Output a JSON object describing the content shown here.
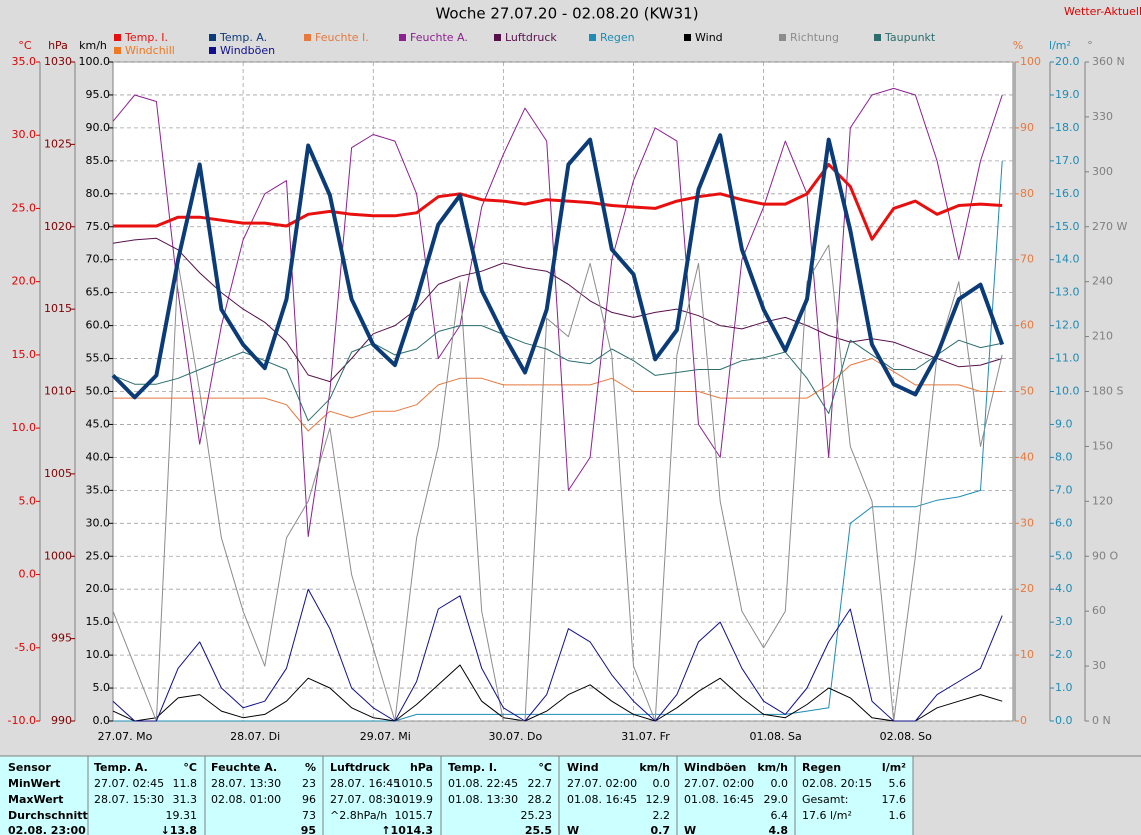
{
  "chart_data": {
    "type": "line",
    "title": "Woche 27.07.20 - 02.08.20 (KW31)",
    "brand": "Wetter-Aktuell",
    "categories": [
      "27.07. Mo",
      null,
      null,
      null,
      null,
      null,
      "28.07. Di",
      null,
      null,
      null,
      null,
      null,
      "29.07. Mi",
      null,
      null,
      null,
      null,
      null,
      "30.07. Do",
      null,
      null,
      null,
      null,
      null,
      "31.07. Fr",
      null,
      null,
      null,
      null,
      null,
      "01.08. Sa",
      null,
      null,
      null,
      null,
      null,
      "02.08. So",
      null,
      null,
      null,
      null,
      null
    ],
    "grid": true,
    "grid_axis": "kmh",
    "axes": {
      "temp": {
        "title": "°C",
        "color": "#e00000",
        "lim": [
          -10,
          35
        ],
        "ticks": [
          {
            "value": -10,
            "label": "-10.0"
          },
          {
            "value": -5,
            "label": "-5.0"
          },
          {
            "value": 0,
            "label": "0.0"
          },
          {
            "value": 5,
            "label": "5.0"
          },
          {
            "value": 10,
            "label": "10.0"
          },
          {
            "value": 15,
            "label": "15.0"
          },
          {
            "value": 20,
            "label": "20.0"
          },
          {
            "value": 25,
            "label": "25.0"
          },
          {
            "value": 30,
            "label": "30.0"
          },
          {
            "value": 35,
            "label": "35.0"
          }
        ]
      },
      "hpa": {
        "title": "hPa",
        "color": "#800000",
        "lim": [
          990,
          1030
        ],
        "ticks": [
          990,
          995,
          1000,
          1005,
          1010,
          1015,
          1020,
          1025,
          1030
        ]
      },
      "kmh": {
        "title": "km/h",
        "color": "#000000",
        "lim": [
          0,
          100
        ],
        "ticks": [
          {
            "value": 0,
            "label": "0.0"
          },
          {
            "value": 5,
            "label": "5.0"
          },
          {
            "value": 10,
            "label": "10.0"
          },
          {
            "value": 15,
            "label": "15.0"
          },
          {
            "value": 20,
            "label": "20.0"
          },
          {
            "value": 25,
            "label": "25.0"
          },
          {
            "value": 30,
            "label": "30.0"
          },
          {
            "value": 35,
            "label": "35.0"
          },
          {
            "value": 40,
            "label": "40.0"
          },
          {
            "value": 45,
            "label": "45.0"
          },
          {
            "value": 50,
            "label": "50.0"
          },
          {
            "value": 55,
            "label": "55.0"
          },
          {
            "value": 60,
            "label": "60.0"
          },
          {
            "value": 65,
            "label": "65.0"
          },
          {
            "value": 70,
            "label": "70.0"
          },
          {
            "value": 75,
            "label": "75.0"
          },
          {
            "value": 80,
            "label": "80.0"
          },
          {
            "value": 85,
            "label": "85.0"
          },
          {
            "value": 90,
            "label": "90.0"
          },
          {
            "value": 95,
            "label": "95.0"
          },
          {
            "value": 100,
            "label": "100.0"
          }
        ]
      },
      "pct": {
        "title": "%",
        "color": "#e8783c",
        "lim": [
          0,
          100
        ],
        "ticks": [
          0,
          10,
          20,
          30,
          40,
          50,
          60,
          70,
          80,
          90,
          100
        ]
      },
      "rain": {
        "title": "l/m²",
        "color": "#1e8cb4",
        "lim": [
          0,
          20
        ],
        "ticks": [
          {
            "value": 0,
            "label": "0.0"
          },
          {
            "value": 1,
            "label": "1.0"
          },
          {
            "value": 2,
            "label": "2.0"
          },
          {
            "value": 3,
            "label": "3.0"
          },
          {
            "value": 4,
            "label": "4.0"
          },
          {
            "value": 5,
            "label": "5.0"
          },
          {
            "value": 6,
            "label": "6.0"
          },
          {
            "value": 7,
            "label": "7.0"
          },
          {
            "value": 8,
            "label": "8.0"
          },
          {
            "value": 9,
            "label": "9.0"
          },
          {
            "value": 10,
            "label": "10.0"
          },
          {
            "value": 11,
            "label": "11.0"
          },
          {
            "value": 12,
            "label": "12.0"
          },
          {
            "value": 13,
            "label": "13.0"
          },
          {
            "value": 14,
            "label": "14.0"
          },
          {
            "value": 15,
            "label": "15.0"
          },
          {
            "value": 16,
            "label": "16.0"
          },
          {
            "value": 17,
            "label": "17.0"
          },
          {
            "value": 18,
            "label": "18.0"
          },
          {
            "value": 19,
            "label": "19.0"
          },
          {
            "value": 20,
            "label": "20.0"
          }
        ]
      },
      "dir": {
        "title": "°",
        "color": "#808080",
        "lim": [
          0,
          360
        ],
        "ticks": [
          {
            "value": 0,
            "label": "0 N"
          },
          30,
          60,
          {
            "value": 90,
            "label": "90 O"
          },
          120,
          150,
          {
            "value": 180,
            "label": "180 S"
          },
          210,
          240,
          {
            "value": 270,
            "label": "270 W"
          },
          300,
          330,
          {
            "value": 360,
            "label": "360 N"
          }
        ]
      }
    },
    "series": [
      {
        "name": "Temp. I.",
        "color": "#e8100e",
        "axis": "temp",
        "line_width": 3,
        "values": [
          23.8,
          23.8,
          23.8,
          24.4,
          24.4,
          24.2,
          24.0,
          24.0,
          23.8,
          24.6,
          24.8,
          24.6,
          24.5,
          24.5,
          24.7,
          25.8,
          26.0,
          25.6,
          25.5,
          25.3,
          25.6,
          25.5,
          25.4,
          25.2,
          25.1,
          25.0,
          25.5,
          25.8,
          26.0,
          25.6,
          25.3,
          25.3,
          26.0,
          28.0,
          26.5,
          22.9,
          25.0,
          25.5,
          24.6,
          25.2,
          25.3,
          25.2
        ]
      },
      {
        "name": "Temp. A.",
        "color": "#0c3c78",
        "axis": "temp",
        "line_width": 4,
        "values": [
          13.6,
          12.1,
          13.6,
          21.5,
          28.0,
          18.1,
          15.7,
          14.1,
          18.8,
          29.3,
          25.9,
          18.8,
          15.7,
          14.3,
          18.8,
          23.9,
          25.9,
          19.4,
          16.4,
          13.8,
          18.1,
          28.0,
          29.7,
          22.2,
          20.5,
          14.7,
          16.7,
          26.3,
          30.0,
          22.2,
          18.1,
          15.3,
          18.8,
          29.7,
          23.5,
          15.7,
          13.0,
          12.3,
          15.0,
          18.8,
          19.8,
          15.7
        ]
      },
      {
        "name": "Feuchte I.",
        "color": "#e8783c",
        "axis": "pct",
        "line_width": 1,
        "values": [
          49,
          49,
          49,
          49,
          49,
          49,
          49,
          49,
          48,
          44,
          47,
          46,
          47,
          47,
          48,
          51,
          52,
          52,
          51,
          51,
          51,
          51,
          51,
          52,
          50,
          50,
          50,
          50,
          49,
          49,
          49,
          49,
          49,
          51,
          54,
          55,
          53,
          51,
          51,
          51,
          50,
          50
        ]
      },
      {
        "name": "Feuchte A.",
        "color": "#8c2090",
        "axis": "pct",
        "line_width": 1,
        "values": [
          91,
          95,
          94,
          65,
          42,
          60,
          73,
          80,
          82,
          28,
          50,
          87,
          89,
          88,
          80,
          55,
          60,
          78,
          86,
          93,
          88,
          35,
          40,
          70,
          82,
          90,
          88,
          45,
          40,
          70,
          78,
          88,
          80,
          40,
          90,
          95,
          96,
          95,
          85,
          70,
          85,
          95
        ]
      },
      {
        "name": "Luftdruck",
        "color": "#58104c",
        "axis": "hpa",
        "line_width": 1,
        "values": [
          1019.0,
          1019.2,
          1019.3,
          1018.6,
          1017.2,
          1016.0,
          1015.0,
          1014.2,
          1013.0,
          1011.0,
          1010.6,
          1012.0,
          1013.5,
          1014.0,
          1015.0,
          1016.5,
          1017.0,
          1017.3,
          1017.8,
          1017.5,
          1017.3,
          1016.5,
          1015.5,
          1014.8,
          1014.5,
          1014.8,
          1015.0,
          1014.6,
          1014.0,
          1013.8,
          1014.2,
          1014.5,
          1014.0,
          1013.4,
          1013.0,
          1013.2,
          1013.0,
          1012.5,
          1012.0,
          1011.5,
          1011.6,
          1012.0
        ]
      },
      {
        "name": "Regen",
        "color": "#1e8cb4",
        "axis": "rain",
        "line_width": 1,
        "values": [
          0,
          0,
          0,
          0,
          0,
          0,
          0,
          0,
          0,
          0,
          0,
          0,
          0,
          0,
          0.2,
          0.2,
          0.2,
          0.2,
          0.2,
          0.2,
          0.2,
          0.2,
          0.2,
          0.2,
          0.2,
          0.2,
          0.2,
          0.2,
          0.2,
          0.2,
          0.2,
          0.2,
          0.3,
          0.4,
          6.0,
          6.5,
          6.5,
          6.5,
          6.7,
          6.8,
          7.0,
          17.0
        ]
      },
      {
        "name": "Wind",
        "color": "#000000",
        "axis": "kmh",
        "line_width": 1,
        "values": [
          1.5,
          0,
          0.5,
          3.5,
          4.0,
          1.5,
          0.5,
          1.0,
          3.0,
          6.5,
          5.0,
          2.0,
          0.5,
          0,
          2.5,
          5.5,
          8.5,
          3.0,
          0.5,
          0,
          1.5,
          4.0,
          5.5,
          3.0,
          1.0,
          0,
          2.0,
          4.5,
          6.5,
          3.5,
          1.0,
          0.5,
          2.5,
          5.0,
          3.5,
          0.5,
          0,
          0,
          2.0,
          3.0,
          4.0,
          3.0
        ]
      },
      {
        "name": "Richtung",
        "color": "#8c8c8c",
        "axis": "dir",
        "line_width": 1,
        "values": [
          60,
          30,
          0,
          250,
          180,
          100,
          60,
          30,
          100,
          120,
          160,
          80,
          40,
          0,
          100,
          150,
          240,
          60,
          0,
          0,
          220,
          210,
          250,
          200,
          30,
          0,
          200,
          250,
          120,
          60,
          40,
          60,
          240,
          260,
          150,
          120,
          0,
          90,
          200,
          240,
          150,
          200
        ]
      },
      {
        "name": "Taupunkt",
        "color": "#2c6e6e",
        "axis": "temp",
        "line_width": 1,
        "values": [
          13.6,
          13.0,
          13.0,
          13.4,
          14.0,
          14.6,
          15.2,
          14.6,
          14.0,
          10.5,
          12.0,
          15.2,
          15.8,
          15.0,
          15.4,
          16.6,
          17.0,
          17.0,
          16.4,
          15.8,
          15.4,
          14.6,
          14.4,
          15.4,
          14.6,
          13.6,
          13.8,
          14.0,
          14.0,
          14.6,
          14.8,
          15.2,
          13.4,
          11.0,
          16.0,
          15.0,
          14.0,
          14.0,
          15.0,
          16.0,
          15.5,
          15.8
        ]
      },
      {
        "name": "Windchill",
        "color": "#f07820",
        "axis": "temp",
        "line_width": 1,
        "values": [
          13.6,
          12.1,
          13.6,
          21.5,
          28.0,
          18.1,
          15.7,
          14.1,
          18.8,
          29.3,
          25.9,
          18.8,
          15.7,
          14.3,
          18.8,
          23.9,
          25.9,
          19.4,
          16.4,
          13.8,
          18.1,
          28.0,
          29.7,
          22.2,
          20.5,
          14.7,
          16.7,
          26.3,
          30.0,
          22.2,
          18.1,
          15.3,
          18.8,
          29.7,
          23.5,
          15.7,
          13.0,
          12.3,
          15.0,
          18.8,
          19.8,
          15.7
        ]
      },
      {
        "name": "Windböen",
        "color": "#10108c",
        "axis": "kmh",
        "line_width": 1,
        "values": [
          3,
          0,
          0,
          8,
          12,
          5,
          2,
          3,
          8,
          20,
          14,
          5,
          2,
          0,
          6,
          17,
          19,
          8,
          2,
          0,
          4,
          14,
          12,
          7,
          3,
          0,
          4,
          12,
          15,
          8,
          3,
          1,
          5,
          12,
          17,
          3,
          0,
          0,
          4,
          6,
          8,
          16
        ]
      }
    ]
  },
  "table": {
    "sensor": {
      "header": "Sensor",
      "rows": [
        "MinWert",
        "MaxWert",
        "Durchschnitt",
        "02.08. 23:00"
      ]
    },
    "columns": [
      {
        "name": "Temp. A.",
        "unit": "°C",
        "cells": [
          [
            "27.07. 02:45",
            "11.8"
          ],
          [
            "28.07. 15:30",
            "31.3"
          ],
          [
            null,
            "19.31"
          ],
          [
            null,
            "↓13.8"
          ]
        ]
      },
      {
        "name": "Feuchte A.",
        "unit": "%",
        "cells": [
          [
            "28.07. 13:30",
            "23"
          ],
          [
            "02.08. 01:00",
            "96"
          ],
          [
            null,
            "73"
          ],
          [
            null,
            "95"
          ]
        ]
      },
      {
        "name": "Luftdruck",
        "unit": "hPa",
        "cells": [
          [
            "28.07. 16:45",
            "1010.5"
          ],
          [
            "27.07. 08:30",
            "1019.9"
          ],
          [
            "^2.8hPa/h",
            "1015.7"
          ],
          [
            null,
            "↑1014.3"
          ]
        ]
      },
      {
        "name": "Temp. I.",
        "unit": "°C",
        "cells": [
          [
            "01.08. 22:45",
            "22.7"
          ],
          [
            "01.08. 13:30",
            "28.2"
          ],
          [
            null,
            "25.23"
          ],
          [
            null,
            "25.5"
          ]
        ]
      },
      {
        "name": "Wind",
        "unit": "km/h",
        "cells": [
          [
            "27.07. 02:00",
            "0.0"
          ],
          [
            "01.08. 16:45",
            "12.9"
          ],
          [
            null,
            "2.2"
          ],
          [
            "W",
            "0.7"
          ]
        ]
      },
      {
        "name": "Windböen",
        "unit": "km/h",
        "cells": [
          [
            "27.07. 02:00",
            "0.0"
          ],
          [
            "01.08. 16:45",
            "29.0"
          ],
          [
            null,
            "6.4"
          ],
          [
            "W",
            "4.8"
          ]
        ]
      },
      {
        "name": "Regen",
        "unit": "l/m²",
        "cells": [
          [
            "02.08. 20:15",
            "5.6"
          ],
          [
            "Gesamt:",
            "17.6"
          ],
          [
            "17.6 l/m²",
            "1.6"
          ]
        ]
      }
    ]
  }
}
